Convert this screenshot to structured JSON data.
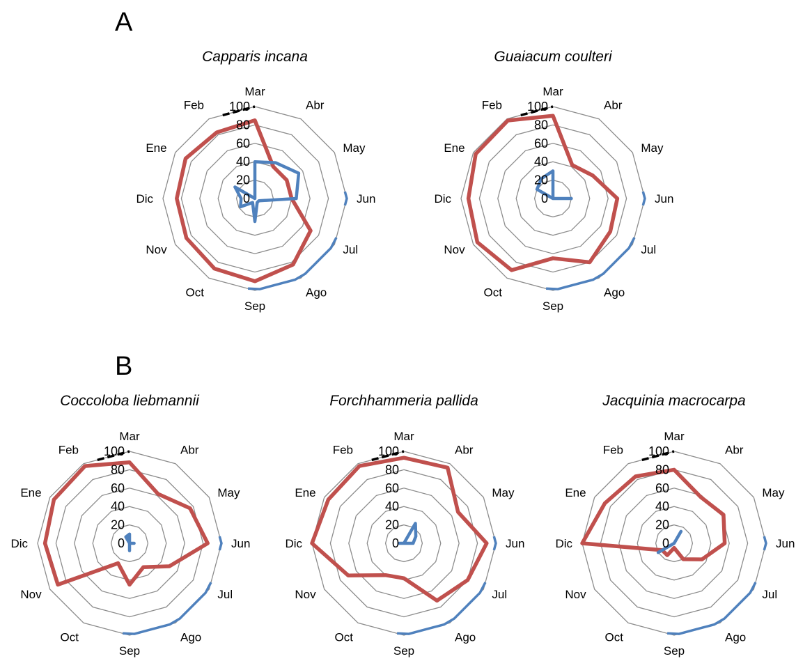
{
  "panels": [
    {
      "letter": "A"
    },
    {
      "letter": "B"
    }
  ],
  "chart_data": [
    {
      "type": "radar",
      "title": "Capparis incana",
      "categories": [
        "Mar",
        "Abr",
        "May",
        "Jun",
        "Jul",
        "Ago",
        "Sep",
        "Oct",
        "Nov",
        "Dic",
        "Ene",
        "Feb"
      ],
      "ticks": [
        "0",
        "20",
        "40",
        "60",
        "80",
        "100"
      ],
      "rlim": [
        0,
        100
      ],
      "grid": true,
      "series": [
        {
          "color": "#c0504d",
          "values": [
            85,
            40,
            40,
            40,
            70,
            83,
            90,
            88,
            86,
            85,
            87,
            83
          ]
        },
        {
          "color": "#4f81bd",
          "values": [
            40,
            45,
            55,
            45,
            5,
            5,
            25,
            5,
            18,
            15,
            25,
            0
          ]
        }
      ],
      "arcs": [
        {
          "color": "#4f81bd",
          "from": 2.85,
          "to": 3.15
        },
        {
          "color": "#4f81bd",
          "from": 3.85,
          "to": 6.15
        },
        {
          "color": "#000000",
          "dashed": true,
          "from": 11.3,
          "to": 12.0
        }
      ]
    },
    {
      "type": "radar",
      "title": "Guaiacum coulteri",
      "categories": [
        "Mar",
        "Abr",
        "May",
        "Jun",
        "Jul",
        "Ago",
        "Sep",
        "Oct",
        "Nov",
        "Dic",
        "Ene",
        "Feb"
      ],
      "ticks": [
        "0",
        "20",
        "40",
        "60",
        "80",
        "100"
      ],
      "rlim": [
        0,
        100
      ],
      "grid": true,
      "series": [
        {
          "color": "#c0504d",
          "values": [
            90,
            42,
            50,
            70,
            72,
            80,
            65,
            90,
            95,
            92,
            97,
            98
          ]
        },
        {
          "color": "#4f81bd",
          "values": [
            30,
            0,
            0,
            20,
            0,
            0,
            0,
            0,
            0,
            0,
            20,
            25
          ]
        }
      ],
      "arcs": [
        {
          "color": "#4f81bd",
          "from": 2.85,
          "to": 3.15
        },
        {
          "color": "#4f81bd",
          "from": 3.85,
          "to": 6.15
        },
        {
          "color": "#000000",
          "dashed": true,
          "from": 11.3,
          "to": 12.0
        }
      ]
    },
    {
      "type": "radar",
      "title": "Coccoloba liebmannii",
      "categories": [
        "Mar",
        "Abr",
        "May",
        "Jun",
        "Jul",
        "Ago",
        "Sep",
        "Oct",
        "Nov",
        "Dic",
        "Ene",
        "Feb"
      ],
      "ticks": [
        "0",
        "20",
        "40",
        "60",
        "80",
        "100"
      ],
      "rlim": [
        0,
        100
      ],
      "grid": true,
      "series": [
        {
          "color": "#c0504d",
          "values": [
            88,
            62,
            76,
            85,
            50,
            30,
            45,
            25,
            90,
            92,
            95,
            97
          ]
        },
        {
          "color": "#4f81bd",
          "values": [
            10,
            0,
            0,
            5,
            0,
            0,
            8,
            0,
            0,
            0,
            0,
            8
          ]
        }
      ],
      "arcs": [
        {
          "color": "#4f81bd",
          "from": 2.85,
          "to": 3.15
        },
        {
          "color": "#4f81bd",
          "from": 3.85,
          "to": 6.15
        },
        {
          "color": "#000000",
          "dashed": true,
          "from": 11.3,
          "to": 12.0
        }
      ]
    },
    {
      "type": "radar",
      "title": "Forchhammeria pallida",
      "categories": [
        "Mar",
        "Abr",
        "May",
        "Jun",
        "Jul",
        "Ago",
        "Sep",
        "Oct",
        "Nov",
        "Dic",
        "Ene",
        "Feb"
      ],
      "ticks": [
        "0",
        "20",
        "40",
        "60",
        "80",
        "100"
      ],
      "rlim": [
        0,
        100
      ],
      "grid": true,
      "series": [
        {
          "color": "#c0504d",
          "values": [
            93,
            95,
            68,
            90,
            80,
            72,
            38,
            40,
            70,
            100,
            95,
            97
          ]
        },
        {
          "color": "#4f81bd",
          "values": [
            0,
            25,
            15,
            10,
            0,
            0,
            0,
            0,
            0,
            5,
            0,
            0
          ]
        }
      ],
      "arcs": [
        {
          "color": "#4f81bd",
          "from": 2.85,
          "to": 3.15
        },
        {
          "color": "#4f81bd",
          "from": 3.85,
          "to": 6.15
        },
        {
          "color": "#000000",
          "dashed": true,
          "from": 11.3,
          "to": 12.0
        }
      ]
    },
    {
      "type": "radar",
      "title": "Jacquinia macrocarpa",
      "categories": [
        "Mar",
        "Abr",
        "May",
        "Jun",
        "Jul",
        "Ago",
        "Sep",
        "Oct",
        "Nov",
        "Dic",
        "Ene",
        "Feb"
      ],
      "ticks": [
        "0",
        "20",
        "40",
        "60",
        "80",
        "100"
      ],
      "rlim": [
        0,
        100
      ],
      "grid": true,
      "series": [
        {
          "color": "#c0504d",
          "values": [
            80,
            58,
            62,
            55,
            35,
            20,
            5,
            15,
            15,
            100,
            87,
            84
          ]
        },
        {
          "color": "#4f81bd",
          "values": [
            0,
            15,
            0,
            0,
            0,
            0,
            0,
            0,
            20,
            0,
            0,
            0
          ]
        }
      ],
      "arcs": [
        {
          "color": "#4f81bd",
          "from": 2.85,
          "to": 3.15
        },
        {
          "color": "#4f81bd",
          "from": 3.85,
          "to": 6.15
        },
        {
          "color": "#000000",
          "dashed": true,
          "from": 11.3,
          "to": 12.0
        }
      ]
    }
  ]
}
